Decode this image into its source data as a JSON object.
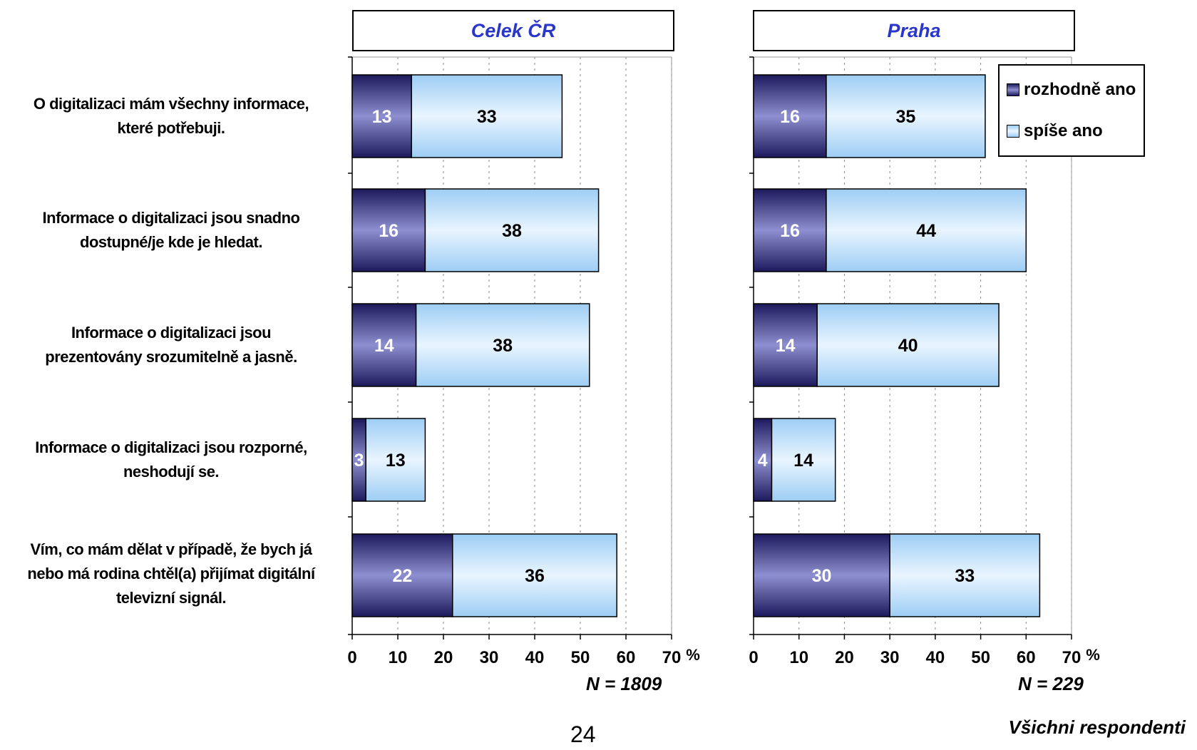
{
  "chart_data": [
    {
      "type": "bar",
      "orientation": "horizontal",
      "stacked": true,
      "title": "Celek ČR",
      "categories": [
        "O digitalizaci mám všechny informace, které potřebuji.",
        "Informace o digitalizaci jsou snadno dostupné/je kde je hledat.",
        "Informace o digitalizaci jsou prezentovány srozumitelně a jasně.",
        "Informace o digitalizaci jsou rozporné, neshodují se.",
        "Vím, co mám dělat v případě, že bych já nebo má rodina chtěl(a) přijímat digitální televizní signál."
      ],
      "series": [
        {
          "name": "rozhodně ano",
          "values": [
            13,
            16,
            14,
            3,
            22
          ],
          "color": "#2b2a7a"
        },
        {
          "name": "spíše ano",
          "values": [
            33,
            38,
            38,
            13,
            36
          ],
          "color": "#a8d4f7"
        }
      ],
      "xlim": [
        0,
        70
      ],
      "xticks": [
        0,
        10,
        20,
        30,
        40,
        50,
        60,
        70
      ],
      "unit": "%",
      "n_label": "N = 1809"
    },
    {
      "type": "bar",
      "orientation": "horizontal",
      "stacked": true,
      "title": "Praha",
      "categories": [
        "O digitalizaci mám všechny informace, které potřebuji.",
        "Informace o digitalizaci jsou snadno dostupné/je kde je hledat.",
        "Informace o digitalizaci jsou prezentovány srozumitelně a jasně.",
        "Informace o digitalizaci jsou rozporné, neshodují se.",
        "Vím, co mám dělat v případě, že bych já nebo má rodina chtěl(a) přijímat digitální televizní signál."
      ],
      "series": [
        {
          "name": "rozhodně ano",
          "values": [
            16,
            16,
            14,
            4,
            30
          ],
          "color": "#2b2a7a"
        },
        {
          "name": "spíše ano",
          "values": [
            35,
            44,
            40,
            14,
            33
          ],
          "color": "#a8d4f7"
        }
      ],
      "xlim": [
        0,
        70
      ],
      "xticks": [
        0,
        10,
        20,
        30,
        40,
        50,
        60,
        70
      ],
      "unit": "%",
      "n_label": "N = 229",
      "legend_position": "top-right"
    }
  ],
  "category_labels": [
    [
      "O digitalizaci mám všechny informace,",
      "které potřebuji."
    ],
    [
      "Informace o digitalizaci jsou snadno",
      "dostupné/je kde je hledat."
    ],
    [
      "Informace o digitalizaci jsou",
      "prezentovány srozumitelně a jasně."
    ],
    [
      "Informace o digitalizaci jsou rozporné,",
      "neshodují se."
    ],
    [
      "Vím, co mám dělat v případě, že bych já",
      "nebo má rodina chtěl(a) přijímat digitální",
      "televizní signál."
    ]
  ],
  "legend": {
    "items": [
      "rozhodně ano",
      "spíše ano"
    ]
  },
  "footer": {
    "page_number": "24",
    "note": "Všichni respondenti"
  }
}
